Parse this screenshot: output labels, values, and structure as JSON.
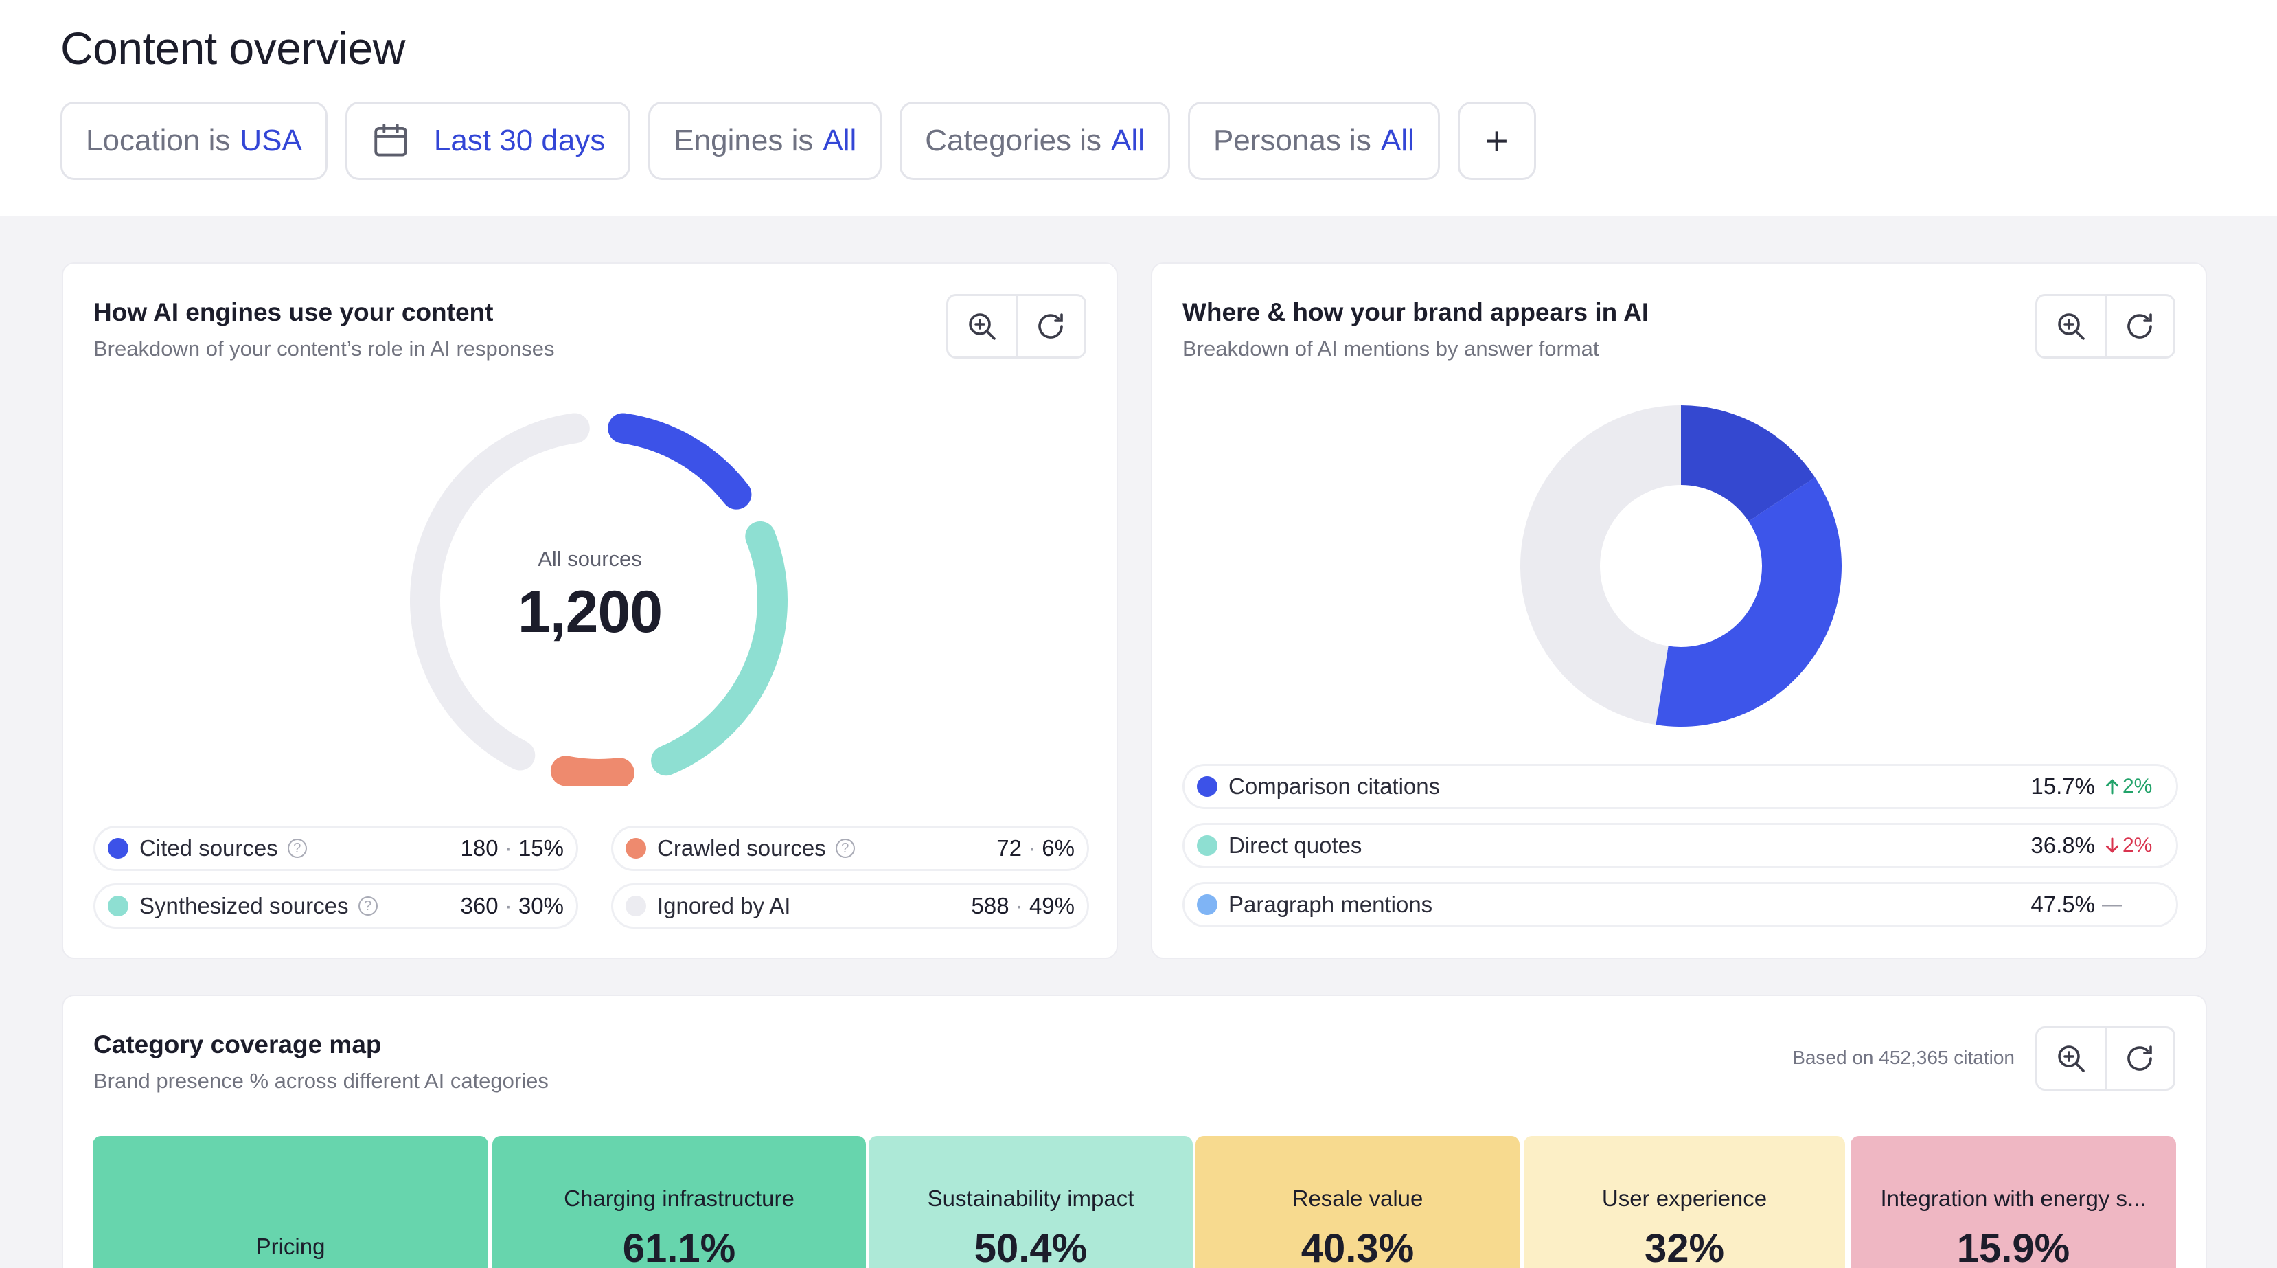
{
  "header": {
    "title": "Content overview"
  },
  "filters": [
    {
      "label": "Location is",
      "value": "USA"
    },
    {
      "label": "",
      "value": "Last 30 days",
      "icon": "calendar-icon"
    },
    {
      "label": "Engines is",
      "value": "All"
    },
    {
      "label": "Categories is",
      "value": "All"
    },
    {
      "label": "Personas is",
      "value": "All"
    }
  ],
  "add_filter": {
    "label": "+"
  },
  "usage_card": {
    "title": "How AI engines use your content",
    "subtitle": "Breakdown of your content’s role in AI responses",
    "center_label": "All sources",
    "center_value": "1,200",
    "legend": [
      {
        "name": "Cited sources",
        "count": "180",
        "pct": "15%",
        "color": "#3c52e8",
        "help": "?"
      },
      {
        "name": "Crawled sources",
        "count": "72",
        "pct": "6%",
        "color": "#ee8a6e",
        "help": "?"
      },
      {
        "name": "Synthesized sources",
        "count": "360",
        "pct": "30%",
        "color": "#8edfd2",
        "help": "?"
      },
      {
        "name": "Ignored by AI",
        "count": "588",
        "pct": "49%",
        "color": "#ececf1"
      }
    ],
    "separator": "·"
  },
  "brand_card": {
    "title": "Where & how your brand appears in AI",
    "subtitle": "Breakdown of AI mentions by answer format",
    "rows": [
      {
        "name": "Comparison citations",
        "pct": "15.7%",
        "trend": "2%",
        "dir": "up",
        "color": "#3c52e8"
      },
      {
        "name": "Direct quotes",
        "pct": "36.8%",
        "trend": "2%",
        "dir": "down",
        "color": "#8edfd2"
      },
      {
        "name": "Paragraph mentions",
        "pct": "47.5%",
        "trend": "—",
        "dir": "flat",
        "color": "#7fb4f5"
      }
    ],
    "chart_colors": [
      "#3448d0",
      "#3d55ea",
      "#ebebf0"
    ]
  },
  "coverage_card": {
    "title": "Category coverage map",
    "subtitle": "Brand presence % across different AI categories",
    "based_on": "Based on 452,365 citation",
    "tiles": [
      {
        "name": "Pricing",
        "value": "",
        "color": "#67d5ad"
      },
      {
        "name": "Charging infrastructure",
        "value": "61.1%",
        "color": "#67d5ad"
      },
      {
        "name": "Sustainability impact",
        "value": "50.4%",
        "color": "#ade9d7"
      },
      {
        "name": "Resale value",
        "value": "40.3%",
        "color": "#f7da8f"
      },
      {
        "name": "User experience",
        "value": "32%",
        "color": "#fcefc6"
      },
      {
        "name": "Integration with energy s...",
        "value": "15.9%",
        "color": "#efb7c3"
      }
    ]
  }
}
